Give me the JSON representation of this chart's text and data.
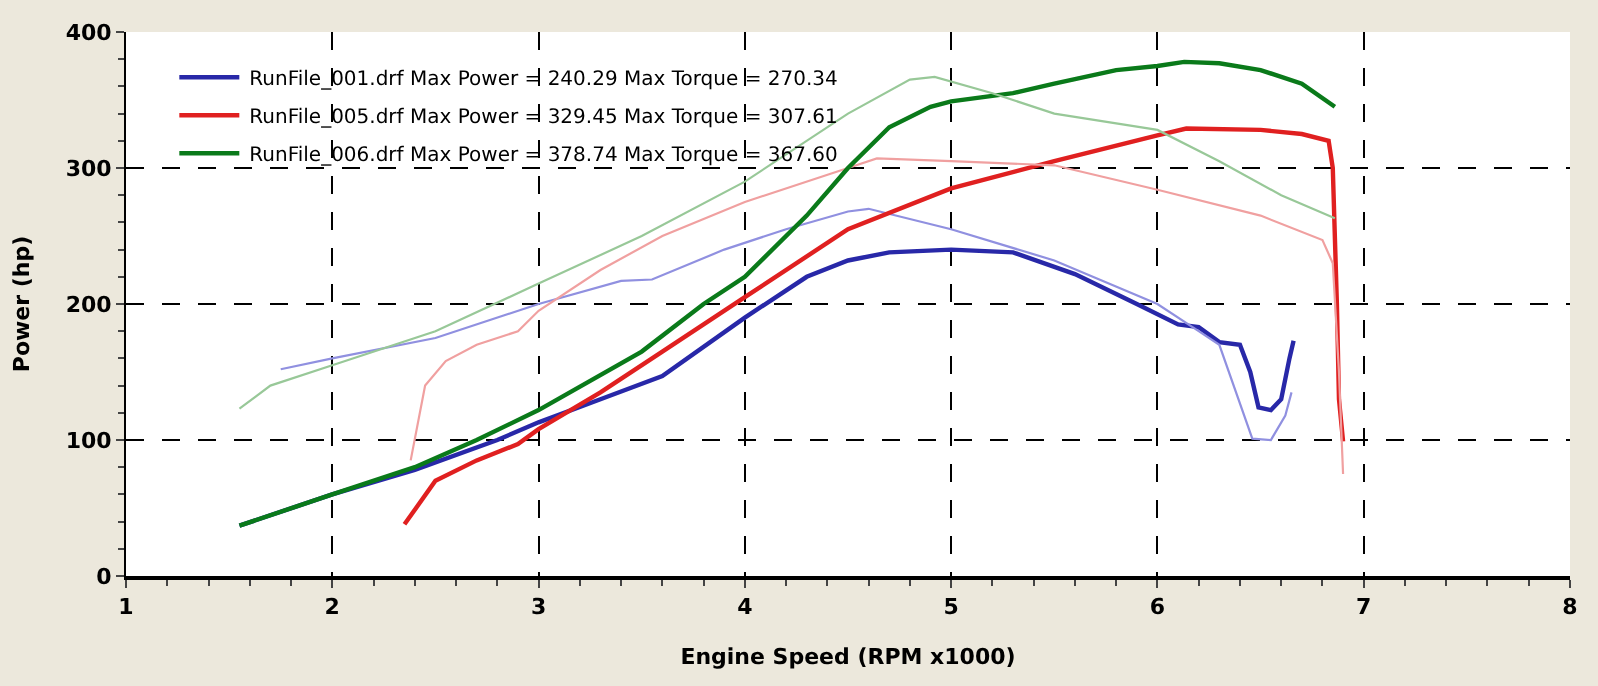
{
  "chart_data": {
    "type": "line",
    "xlabel": "Engine Speed (RPM x1000)",
    "ylabel": "Power (hp)",
    "xlim": [
      1,
      8
    ],
    "xticks": [
      1,
      2,
      3,
      4,
      5,
      6,
      7,
      8
    ],
    "ylim": [
      0,
      400
    ],
    "yticks": [
      0,
      100,
      200,
      300,
      400
    ],
    "grid": true,
    "legend": "top left",
    "marker": "none",
    "line_style": "solid",
    "series": [
      {
        "name": "RunFile_001.drf Max Power = 240.29 Max Torque = 270.34",
        "color": "#2828a8",
        "x": [
          1.55,
          2.0,
          2.4,
          2.8,
          3.0,
          3.3,
          3.6,
          4.0,
          4.3,
          4.5,
          4.7,
          5.0,
          5.3,
          5.6,
          5.9,
          6.1,
          6.2,
          6.3,
          6.4,
          6.45,
          6.49,
          6.55,
          6.6,
          6.64,
          6.66
        ],
        "values": [
          37,
          60,
          78,
          100,
          113,
          130,
          147,
          190,
          220,
          232,
          238,
          240,
          238,
          222,
          200,
          185,
          183,
          172,
          170,
          150,
          124,
          122,
          130,
          160,
          173
        ]
      },
      {
        "color": "#9090e0",
        "x": [
          1.75,
          2.0,
          2.5,
          3.0,
          3.4,
          3.55,
          3.9,
          4.2,
          4.5,
          4.6,
          5.0,
          5.5,
          6.0,
          6.2,
          6.3,
          6.46,
          6.55,
          6.62,
          6.65
        ],
        "values": [
          152,
          160,
          175,
          200,
          217,
          218,
          240,
          255,
          268,
          270,
          255,
          232,
          200,
          180,
          170,
          101,
          100,
          118,
          135
        ]
      },
      {
        "name": "RunFile_005.drf Max Power = 329.45 Max Torque = 307.61",
        "color": "#e02020",
        "x": [
          2.35,
          2.5,
          2.7,
          2.9,
          3.0,
          3.3,
          3.6,
          4.0,
          4.5,
          5.0,
          5.5,
          6.0,
          6.14,
          6.5,
          6.7,
          6.83,
          6.85,
          6.87,
          6.88,
          6.9
        ],
        "values": [
          38,
          70,
          85,
          97,
          108,
          135,
          165,
          205,
          255,
          285,
          305,
          324,
          329,
          328,
          325,
          320,
          300,
          200,
          130,
          99
        ]
      },
      {
        "color": "#f0a0a0",
        "x": [
          2.38,
          2.45,
          2.55,
          2.7,
          2.9,
          3.0,
          3.3,
          3.6,
          4.0,
          4.5,
          4.64,
          5.0,
          5.5,
          6.0,
          6.5,
          6.8,
          6.85,
          6.88,
          6.9
        ],
        "values": [
          85,
          140,
          158,
          170,
          180,
          195,
          225,
          250,
          275,
          300,
          307,
          305,
          302,
          284,
          265,
          247,
          230,
          150,
          75
        ]
      },
      {
        "name": "RunFile_006.drf Max Power = 378.74 Max Torque = 367.60",
        "color": "#0a7a1a",
        "x": [
          1.55,
          2.0,
          2.4,
          2.7,
          3.0,
          3.5,
          3.8,
          4.0,
          4.3,
          4.5,
          4.7,
          4.9,
          5.0,
          5.3,
          5.5,
          5.8,
          6.0,
          6.13,
          6.3,
          6.5,
          6.7,
          6.86
        ],
        "values": [
          37,
          60,
          80,
          100,
          122,
          165,
          200,
          220,
          265,
          300,
          330,
          345,
          349,
          355,
          362,
          372,
          375,
          378,
          377,
          372,
          362,
          345
        ]
      },
      {
        "color": "#98c898",
        "x": [
          1.55,
          1.7,
          2.0,
          2.5,
          3.0,
          3.5,
          4.0,
          4.5,
          4.8,
          4.92,
          5.2,
          5.5,
          6.0,
          6.3,
          6.6,
          6.86
        ],
        "values": [
          123,
          140,
          155,
          180,
          215,
          250,
          290,
          340,
          365,
          367,
          355,
          340,
          328,
          305,
          280,
          263
        ]
      }
    ]
  }
}
